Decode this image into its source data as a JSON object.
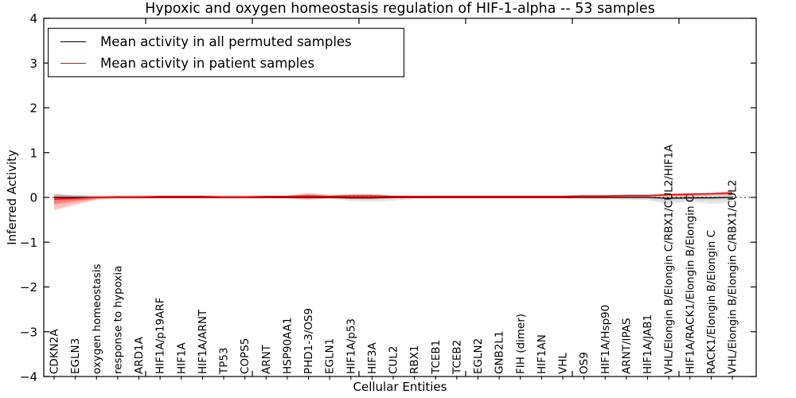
{
  "colors": {
    "permuted_line": "#000000",
    "patient_line": "#ff0000",
    "permuted_band": "#888888",
    "patient_band": "#ff0000",
    "axis": "#000000",
    "background": "#ffffff"
  },
  "legend": {
    "items": [
      {
        "label": "Mean activity in all permuted samples",
        "color": "#000000"
      },
      {
        "label": "Mean activity in patient samples",
        "color": "#ff0000"
      }
    ]
  },
  "chart_data": {
    "type": "line",
    "title": "Hypoxic and oxygen homeostasis regulation of HIF-1-alpha -- 53 samples",
    "xlabel": "Cellular Entities",
    "ylabel": "Inferred Activity",
    "ylim": [
      -4,
      4
    ],
    "yticks": [
      4,
      3,
      2,
      1,
      0,
      -1,
      -2,
      -3,
      -4
    ],
    "ytick_labels": [
      "4",
      "3",
      "2",
      "1",
      "0",
      "−1",
      "−2",
      "−3",
      "−4"
    ],
    "grid": false,
    "zero_line_dotted": true,
    "legend_position": "upper left",
    "x_tick_label_rotation": 90,
    "x_tick_labels_inside": true,
    "categories": [
      "CDKN2A",
      "EGLN3",
      "oxygen homeostasis",
      "response to hypoxia",
      "ARD1A",
      "HIF1A/p19ARF",
      "HIF1A",
      "HIF1A/ARNT",
      "TP53",
      "COPS5",
      "ARNT",
      "HSP90AA1",
      "PHD1-3/OS9",
      "EGLN1",
      "HIF1A/p53",
      "HIF3A",
      "CUL2",
      "RBX1",
      "TCEB1",
      "TCEB2",
      "EGLN2",
      "GNB2L1",
      "FIH (dimer)",
      "HIF1AN",
      "VHL",
      "OS9",
      "HIF1A/Hsp90",
      "ARNT/IPAS",
      "HIF1A/JAB1",
      "VHL/Elongin B/Elongin C/RBX1/CUL2/HIF1A",
      "HIF1A/RACK1/Elongin B/Elongin C",
      "RACK1/Elongin B/Elongin C",
      "VHL/Elongin B/Elongin C/RBX1/CUL2"
    ],
    "series": [
      {
        "name": "Mean activity in all permuted samples",
        "color": "#000000",
        "band_color": "#888888",
        "band_opacity_outer": 0.22,
        "band_opacity_inner": 0.14,
        "values": [
          0,
          0,
          0,
          0,
          0,
          0,
          0,
          0,
          0,
          0,
          0,
          0,
          0,
          0,
          -0.01,
          -0.01,
          0,
          0,
          0,
          0,
          0,
          0,
          0,
          0,
          0,
          0,
          0,
          0,
          0,
          -0.02,
          -0.01,
          -0.01,
          0
        ],
        "band_upper": [
          0.09,
          0.05,
          0.03,
          0.03,
          0.03,
          0.03,
          0.03,
          0.03,
          0.03,
          0.03,
          0.03,
          0.03,
          0.04,
          0.03,
          0.04,
          0.04,
          0.03,
          0.03,
          0.03,
          0.03,
          0.03,
          0.03,
          0.03,
          0.03,
          0.03,
          0.03,
          0.04,
          0.04,
          0.05,
          0.06,
          0.05,
          0.05,
          0.08
        ],
        "band_lower": [
          -0.12,
          -0.06,
          -0.03,
          -0.03,
          -0.03,
          -0.03,
          -0.03,
          -0.03,
          -0.03,
          -0.03,
          -0.03,
          -0.03,
          -0.04,
          -0.03,
          -0.08,
          -0.1,
          -0.07,
          -0.04,
          -0.03,
          -0.03,
          -0.03,
          -0.03,
          -0.03,
          -0.03,
          -0.03,
          -0.04,
          -0.04,
          -0.05,
          -0.06,
          -0.16,
          -0.09,
          -0.14,
          -0.11
        ]
      },
      {
        "name": "Mean activity in patient samples",
        "color": "#ff0000",
        "band_color": "#ff0000",
        "band_opacity_outer": 0.25,
        "band_opacity_inner": 0.28,
        "values": [
          -0.04,
          -0.02,
          0,
          0.01,
          0.01,
          0.02,
          0.02,
          0.02,
          0.01,
          0.01,
          0.02,
          0.02,
          0.03,
          0.02,
          0.03,
          0.03,
          0.02,
          0.02,
          0.02,
          0.02,
          0.02,
          0.02,
          0.02,
          0.02,
          0.02,
          0.03,
          0.03,
          0.04,
          0.04,
          0.06,
          0.07,
          0.08,
          0.1
        ],
        "band_upper": [
          0.07,
          0.05,
          0.04,
          0.04,
          0.04,
          0.05,
          0.05,
          0.05,
          0.04,
          0.04,
          0.05,
          0.05,
          0.1,
          0.06,
          0.08,
          0.08,
          0.05,
          0.05,
          0.05,
          0.05,
          0.05,
          0.05,
          0.05,
          0.05,
          0.05,
          0.06,
          0.06,
          0.07,
          0.07,
          0.09,
          0.1,
          0.11,
          0.14
        ],
        "band_lower": [
          -0.28,
          -0.16,
          -0.05,
          -0.02,
          -0.02,
          -0.01,
          -0.01,
          -0.01,
          -0.02,
          -0.02,
          -0.01,
          -0.02,
          -0.05,
          -0.02,
          -0.03,
          -0.03,
          -0.01,
          -0.01,
          -0.01,
          -0.01,
          -0.01,
          -0.01,
          -0.01,
          -0.01,
          -0.01,
          0,
          0,
          0.01,
          0.01,
          0.03,
          0.04,
          0.05,
          0.04
        ]
      }
    ]
  }
}
